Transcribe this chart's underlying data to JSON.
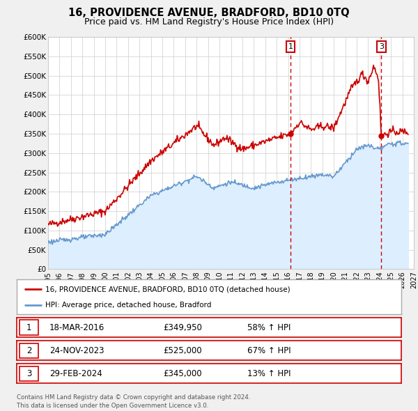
{
  "title": "16, PROVIDENCE AVENUE, BRADFORD, BD10 0TQ",
  "subtitle": "Price paid vs. HM Land Registry's House Price Index (HPI)",
  "red_line_label": "16, PROVIDENCE AVENUE, BRADFORD, BD10 0TQ (detached house)",
  "blue_line_label": "HPI: Average price, detached house, Bradford",
  "ylim": [
    0,
    600000
  ],
  "yticks": [
    0,
    50000,
    100000,
    150000,
    200000,
    250000,
    300000,
    350000,
    400000,
    450000,
    500000,
    550000,
    600000
  ],
  "ytick_labels": [
    "£0",
    "£50K",
    "£100K",
    "£150K",
    "£200K",
    "£250K",
    "£300K",
    "£350K",
    "£400K",
    "£450K",
    "£500K",
    "£550K",
    "£600K"
  ],
  "xlim_start": 1995.0,
  "xlim_end": 2027.0,
  "xtick_years": [
    1995,
    1996,
    1997,
    1998,
    1999,
    2000,
    2001,
    2002,
    2003,
    2004,
    2005,
    2006,
    2007,
    2008,
    2009,
    2010,
    2011,
    2012,
    2013,
    2014,
    2015,
    2016,
    2017,
    2018,
    2019,
    2020,
    2021,
    2022,
    2023,
    2024,
    2025,
    2026,
    2027
  ],
  "red_color": "#cc0000",
  "blue_color": "#6699cc",
  "blue_fill_color": "#ddeeff",
  "grid_color": "#cccccc",
  "background_color": "#f0f0f0",
  "plot_bg_color": "#ffffff",
  "marker1_x": 2016.21,
  "marker1_y": 349950,
  "marker3_x": 2024.16,
  "marker3_y": 345000,
  "vline1_x": 2016.21,
  "vline2_x": 2024.16,
  "table_rows": [
    {
      "num": "1",
      "date": "18-MAR-2016",
      "price": "£349,950",
      "hpi": "58% ↑ HPI"
    },
    {
      "num": "2",
      "date": "24-NOV-2023",
      "price": "£525,000",
      "hpi": "67% ↑ HPI"
    },
    {
      "num": "3",
      "date": "29-FEB-2024",
      "price": "£345,000",
      "hpi": "13% ↑ HPI"
    }
  ],
  "footer": "Contains HM Land Registry data © Crown copyright and database right 2024.\nThis data is licensed under the Open Government Licence v3.0."
}
